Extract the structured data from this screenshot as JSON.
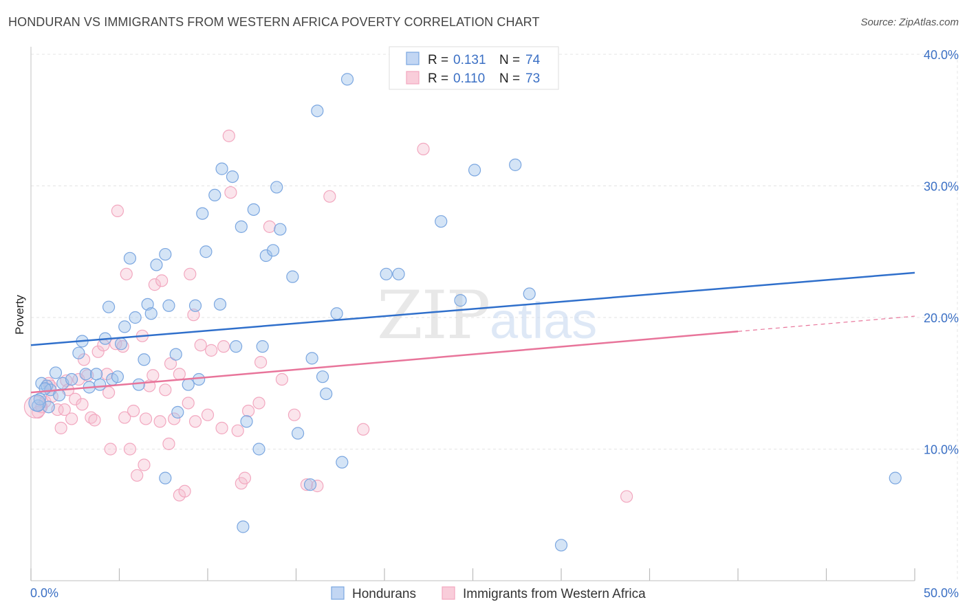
{
  "title": "HONDURAN VS IMMIGRANTS FROM WESTERN AFRICA POVERTY CORRELATION CHART",
  "source": "Source: ZipAtlas.com",
  "chart_data": {
    "type": "scatter",
    "ylabel": "Poverty",
    "xlim": [
      0,
      50
    ],
    "ylim": [
      0,
      40
    ],
    "x_tick_labels": [
      "0.0%",
      "50.0%"
    ],
    "y_ticks": [
      10,
      20,
      30,
      40
    ],
    "y_tick_labels": [
      "10.0%",
      "20.0%",
      "30.0%",
      "40.0%"
    ],
    "watermark": [
      "ZIP",
      "atlas"
    ],
    "legend": {
      "r_label": "R =",
      "n_label": "N =",
      "entries": [
        {
          "name": "Hondurans",
          "r": "0.131",
          "n": "74"
        },
        {
          "name": "Immigrants from Western Africa",
          "r": "0.110",
          "n": "73"
        }
      ]
    },
    "series": [
      {
        "name": "Hondurans",
        "color": "#7aa6e0",
        "line_color": "#2f6fcb",
        "trend": {
          "x0": 0,
          "y0": 17.9,
          "x1": 50,
          "y1": 23.4,
          "dash_from": null
        },
        "points": [
          [
            0.6,
            15.0
          ],
          [
            0.9,
            14.8
          ],
          [
            1.1,
            14.5
          ],
          [
            1.4,
            15.8
          ],
          [
            1.6,
            14.1
          ],
          [
            1.8,
            15.0
          ],
          [
            2.3,
            15.3
          ],
          [
            2.7,
            17.3
          ],
          [
            2.9,
            18.2
          ],
          [
            3.1,
            15.7
          ],
          [
            3.3,
            14.7
          ],
          [
            3.7,
            15.7
          ],
          [
            3.9,
            14.9
          ],
          [
            4.2,
            18.4
          ],
          [
            4.4,
            20.8
          ],
          [
            4.6,
            15.3
          ],
          [
            4.9,
            15.5
          ],
          [
            5.1,
            18.0
          ],
          [
            5.3,
            19.3
          ],
          [
            5.6,
            24.5
          ],
          [
            5.9,
            20.0
          ],
          [
            6.1,
            14.9
          ],
          [
            6.4,
            16.8
          ],
          [
            6.6,
            21.0
          ],
          [
            6.8,
            20.3
          ],
          [
            7.1,
            24.0
          ],
          [
            7.6,
            24.8
          ],
          [
            7.8,
            20.9
          ],
          [
            8.2,
            17.2
          ],
          [
            8.9,
            14.9
          ],
          [
            9.3,
            20.9
          ],
          [
            9.5,
            15.3
          ],
          [
            9.7,
            27.9
          ],
          [
            9.9,
            25.0
          ],
          [
            10.4,
            29.3
          ],
          [
            10.8,
            31.3
          ],
          [
            10.7,
            21.0
          ],
          [
            11.4,
            30.7
          ],
          [
            11.6,
            17.8
          ],
          [
            11.9,
            26.9
          ],
          [
            12.2,
            12.1
          ],
          [
            12.6,
            28.2
          ],
          [
            12.9,
            10.0
          ],
          [
            13.1,
            17.8
          ],
          [
            13.3,
            24.7
          ],
          [
            13.7,
            25.1
          ],
          [
            13.9,
            29.9
          ],
          [
            14.1,
            26.7
          ],
          [
            14.8,
            23.1
          ],
          [
            15.1,
            11.2
          ],
          [
            15.9,
            16.9
          ],
          [
            16.2,
            35.7
          ],
          [
            16.5,
            15.5
          ],
          [
            16.7,
            14.2
          ],
          [
            17.3,
            20.3
          ],
          [
            17.6,
            9.0
          ],
          [
            17.9,
            38.1
          ],
          [
            20.1,
            23.3
          ],
          [
            20.8,
            23.3
          ],
          [
            23.2,
            27.3
          ],
          [
            24.3,
            21.3
          ],
          [
            25.1,
            31.2
          ],
          [
            27.4,
            31.6
          ],
          [
            28.2,
            21.8
          ],
          [
            30.0,
            2.7
          ],
          [
            48.9,
            7.8
          ],
          [
            7.6,
            7.8
          ],
          [
            12.0,
            4.1
          ],
          [
            15.8,
            7.3
          ],
          [
            8.3,
            12.8
          ],
          [
            0.4,
            13.3
          ],
          [
            0.5,
            13.8
          ],
          [
            1.0,
            13.2
          ],
          [
            0.8,
            14.6
          ]
        ]
      },
      {
        "name": "Immigrants from Western Africa",
        "color": "#f2a7bf",
        "line_color": "#e8749a",
        "trend": {
          "x0": 0,
          "y0": 14.3,
          "x1": 50,
          "y1": 20.1,
          "dash_from": 40.0
        },
        "points": [
          [
            0.4,
            12.8
          ],
          [
            0.6,
            13.2
          ],
          [
            0.8,
            13.6
          ],
          [
            1.0,
            15.0
          ],
          [
            1.2,
            14.0
          ],
          [
            1.5,
            13.0
          ],
          [
            1.7,
            11.6
          ],
          [
            1.9,
            13.0
          ],
          [
            2.0,
            15.2
          ],
          [
            2.1,
            14.5
          ],
          [
            2.3,
            12.3
          ],
          [
            2.5,
            13.8
          ],
          [
            2.7,
            15.3
          ],
          [
            2.9,
            13.4
          ],
          [
            3.0,
            16.8
          ],
          [
            3.2,
            15.6
          ],
          [
            3.4,
            12.4
          ],
          [
            3.6,
            12.2
          ],
          [
            3.8,
            17.4
          ],
          [
            4.1,
            17.9
          ],
          [
            4.3,
            15.7
          ],
          [
            4.4,
            14.3
          ],
          [
            4.5,
            10.0
          ],
          [
            4.8,
            18.0
          ],
          [
            4.9,
            28.1
          ],
          [
            5.2,
            17.8
          ],
          [
            5.3,
            12.4
          ],
          [
            5.4,
            23.3
          ],
          [
            5.6,
            10.0
          ],
          [
            5.8,
            12.9
          ],
          [
            6.0,
            8.0
          ],
          [
            6.3,
            18.6
          ],
          [
            6.4,
            8.8
          ],
          [
            6.5,
            12.3
          ],
          [
            6.7,
            14.8
          ],
          [
            6.9,
            15.6
          ],
          [
            7.0,
            22.5
          ],
          [
            7.3,
            12.1
          ],
          [
            7.4,
            22.8
          ],
          [
            7.6,
            14.5
          ],
          [
            7.8,
            10.4
          ],
          [
            7.9,
            16.5
          ],
          [
            8.1,
            12.3
          ],
          [
            8.4,
            6.5
          ],
          [
            8.7,
            6.8
          ],
          [
            8.9,
            13.5
          ],
          [
            9.0,
            23.3
          ],
          [
            9.2,
            20.2
          ],
          [
            9.3,
            12.1
          ],
          [
            9.6,
            17.9
          ],
          [
            10.0,
            12.6
          ],
          [
            10.2,
            17.5
          ],
          [
            10.8,
            11.6
          ],
          [
            10.9,
            17.8
          ],
          [
            11.2,
            33.8
          ],
          [
            11.3,
            29.5
          ],
          [
            11.7,
            11.4
          ],
          [
            11.9,
            7.4
          ],
          [
            12.1,
            7.8
          ],
          [
            12.3,
            12.9
          ],
          [
            12.9,
            13.5
          ],
          [
            13.0,
            16.6
          ],
          [
            13.5,
            26.9
          ],
          [
            14.2,
            15.3
          ],
          [
            14.9,
            12.6
          ],
          [
            15.6,
            7.3
          ],
          [
            16.2,
            7.2
          ],
          [
            16.9,
            29.2
          ],
          [
            18.8,
            11.5
          ],
          [
            22.2,
            32.8
          ],
          [
            33.7,
            6.4
          ],
          [
            8.4,
            15.7
          ],
          [
            1.1,
            14.8
          ]
        ]
      }
    ]
  }
}
